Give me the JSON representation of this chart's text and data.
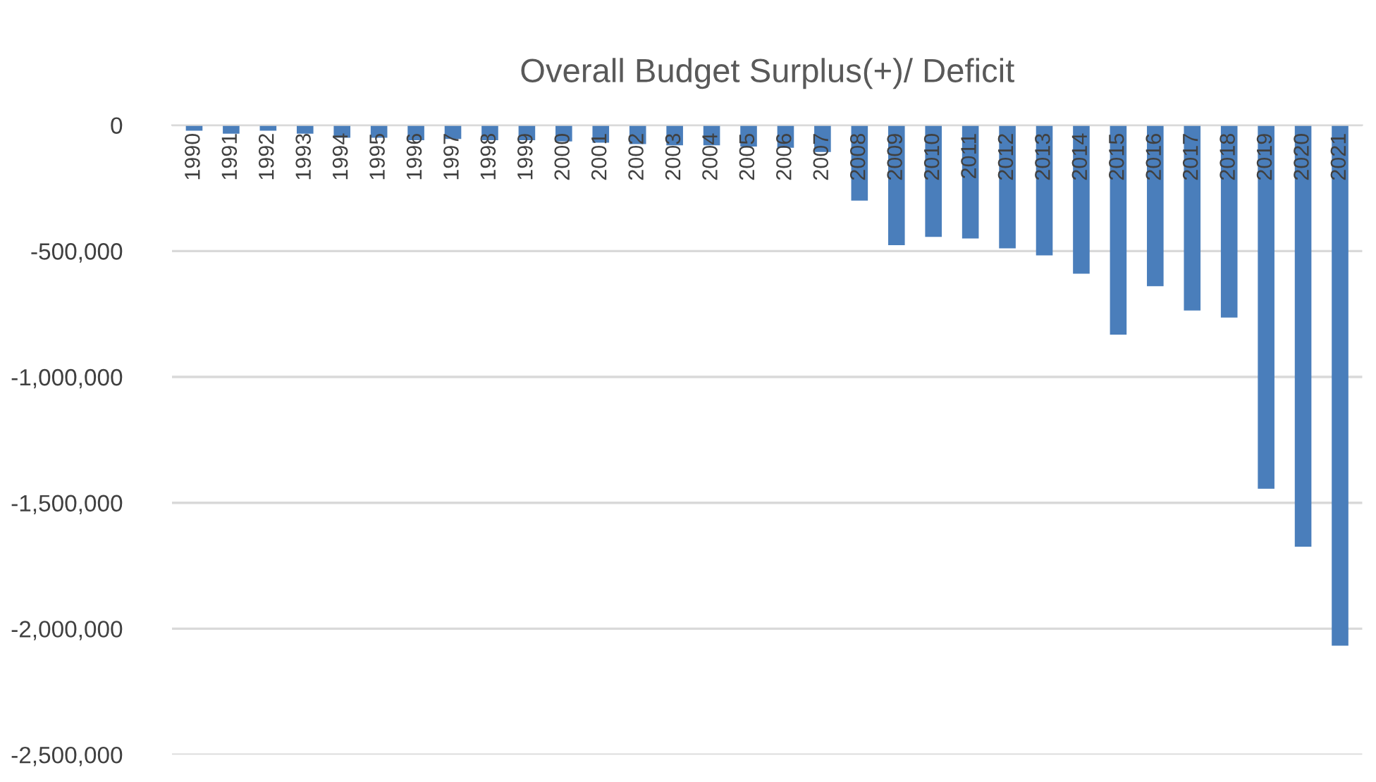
{
  "chart_data": {
    "type": "bar",
    "title": "Overall Budget Surplus(+)/ Deficit",
    "categories": [
      "1990",
      "1991",
      "1992",
      "1993",
      "1994",
      "1995",
      "1996",
      "1997",
      "1998",
      "1999",
      "2000",
      "2001",
      "2002",
      "2003",
      "2004",
      "2005",
      "2006",
      "2007",
      "2008",
      "2009",
      "2010",
      "2011",
      "2012",
      "2013",
      "2014",
      "2015",
      "2016",
      "2017",
      "2018",
      "2019",
      "2020",
      "2021"
    ],
    "values": [
      -22000,
      -34000,
      -22000,
      -34000,
      -50000,
      -50000,
      -60000,
      -55000,
      -60000,
      -60000,
      -65000,
      -70000,
      -75000,
      -80000,
      -80000,
      -85000,
      -90000,
      -107000,
      -300000,
      -477000,
      -444000,
      -450000,
      -489000,
      -517000,
      -590000,
      -832000,
      -640000,
      -736000,
      -764000,
      -1444000,
      -1674000,
      -2067000
    ],
    "color": "#4a7ebb",
    "ylim": [
      -2500000,
      0
    ],
    "yticks": [
      {
        "value": -2500000,
        "label": "-2,500,000"
      },
      {
        "value": -2000000,
        "label": "-2,000,000"
      },
      {
        "value": -1500000,
        "label": "-1,500,000"
      },
      {
        "value": -1000000,
        "label": "-1,000,000"
      },
      {
        "value": -500000,
        "label": "-500,000"
      },
      0
    ],
    "grid": "y",
    "legend": false
  }
}
